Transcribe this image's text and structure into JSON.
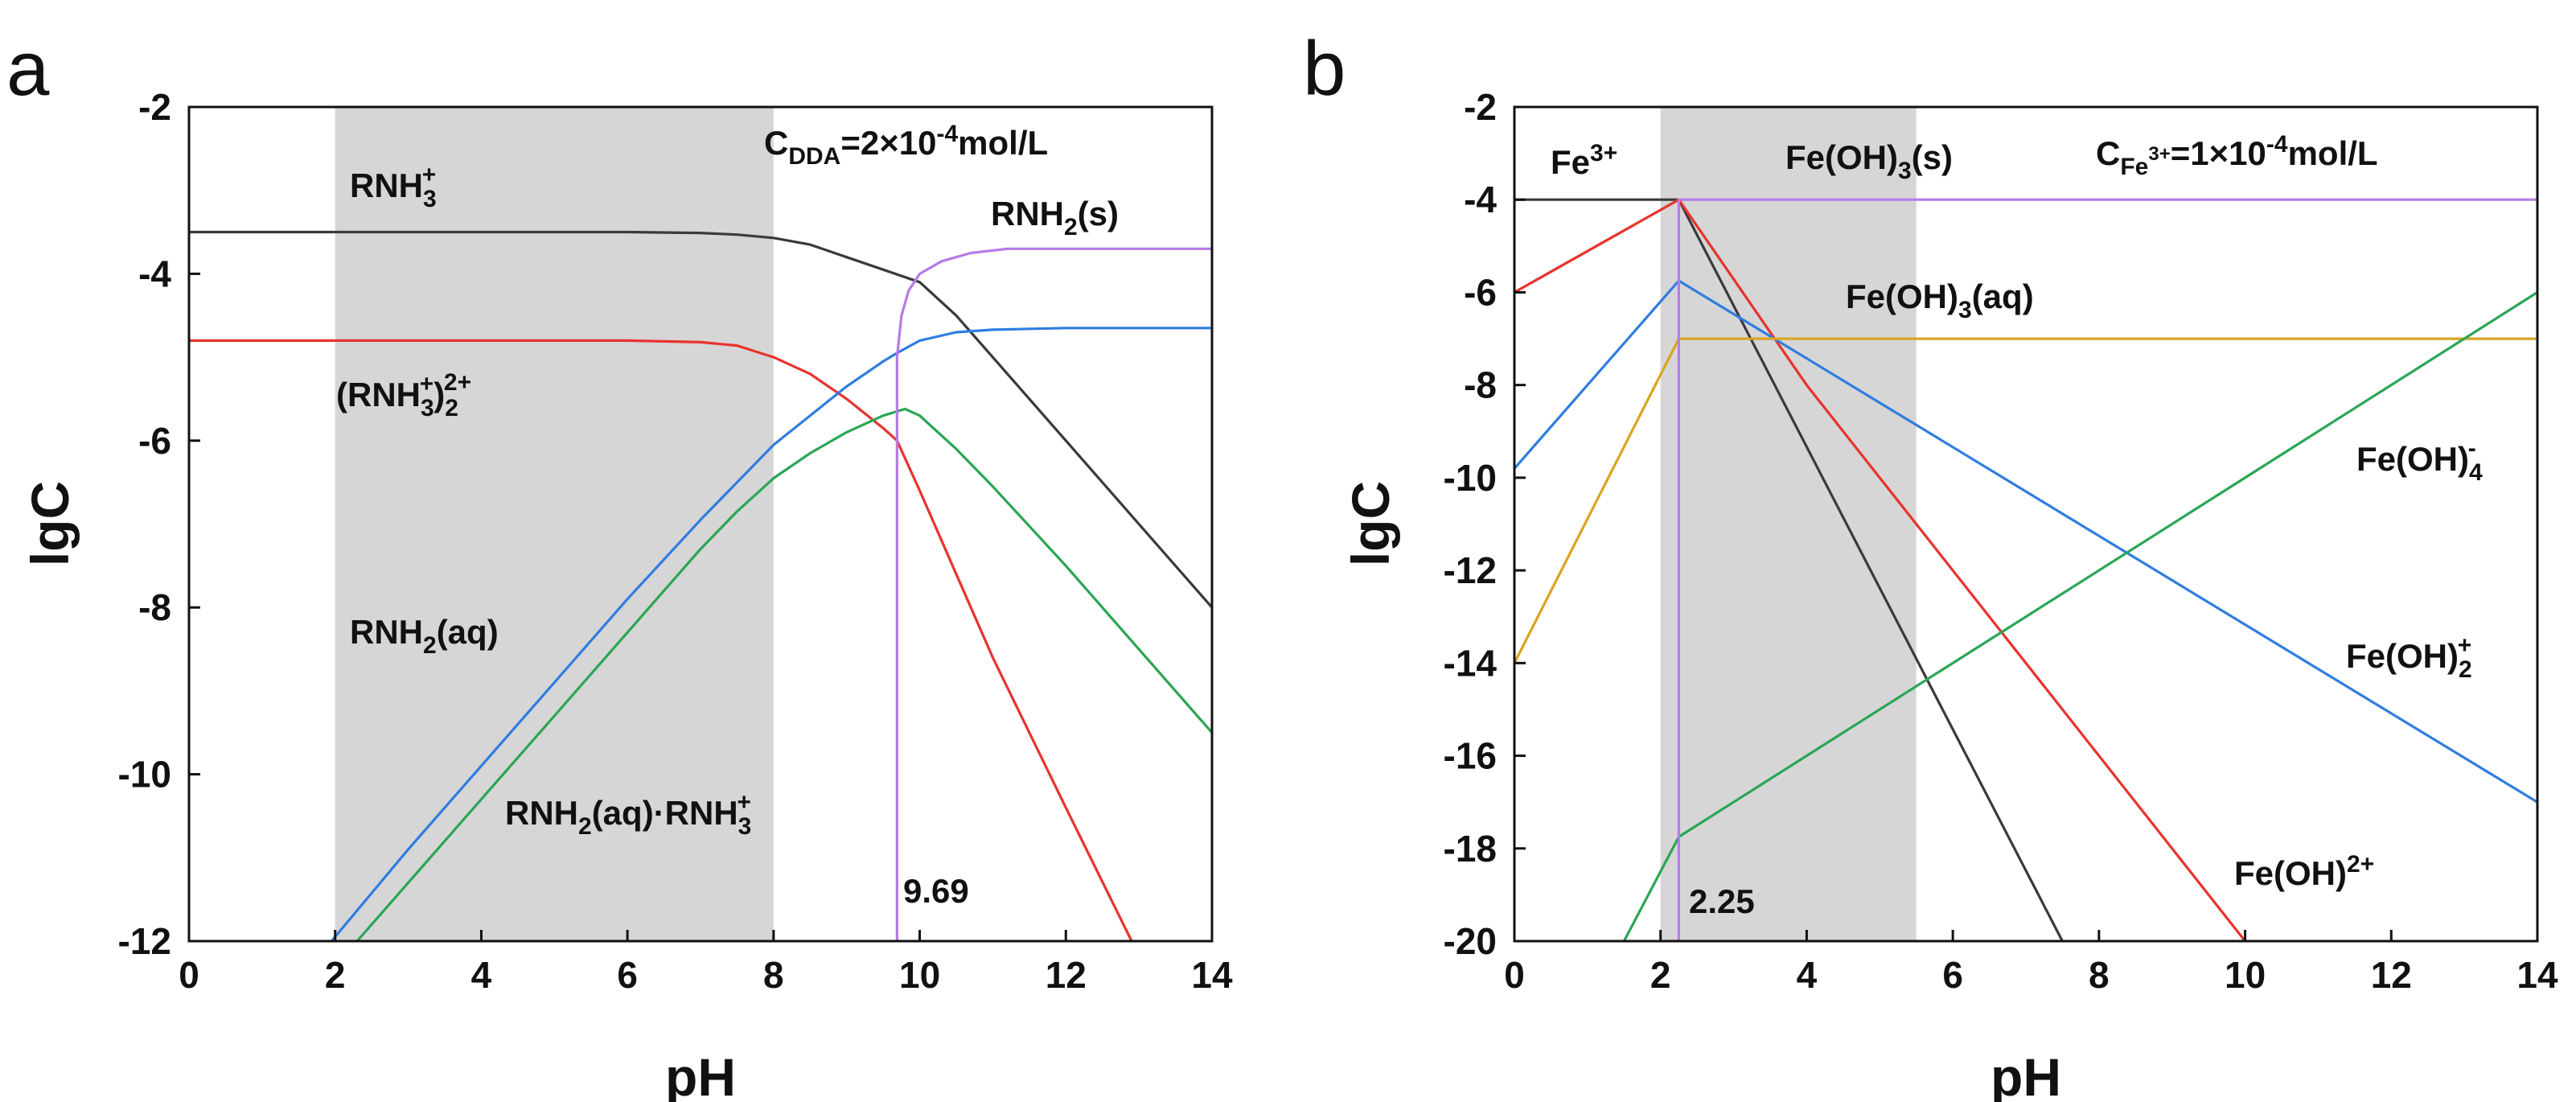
{
  "chart_data": [
    {
      "type": "line",
      "panel_label": "a",
      "xlabel": "pH",
      "ylabel": "lgC",
      "xlim": [
        0,
        14
      ],
      "ylim": [
        -12,
        -2
      ],
      "xticks": [
        0,
        2,
        4,
        6,
        8,
        10,
        12,
        14
      ],
      "yticks": [
        -2,
        -4,
        -6,
        -8,
        -10,
        -12
      ],
      "shaded_region": {
        "x_from": 2,
        "x_to": 8,
        "color": "#d6d6d6"
      },
      "vertical_marker": {
        "x": 9.69,
        "label": "9.69",
        "color": "#b57be6"
      },
      "annotations": {
        "conc_main": "C",
        "conc_sub": "DDA",
        "conc_eq": "=2×10",
        "conc_exp": "-4",
        "conc_unit": "mol/L",
        "rnh3_main": "RNH",
        "rnh3_sub": "3",
        "rnh3_sup": "+",
        "dimer_main": "(RNH",
        "dimer_sub": "3",
        "dimer_sup": "+",
        "dimer_close": ")",
        "dimer_sub2": "2",
        "dimer_sup2": "2+",
        "rnh2s_main": "RNH",
        "rnh2s_sub": "2",
        "rnh2s_tail": "(s)",
        "rnh2aq_main": "RNH",
        "rnh2aq_sub": "2",
        "rnh2aq_tail": "(aq)",
        "complex_main": "RNH",
        "complex_sub": "2",
        "complex_mid": "(aq)·RNH",
        "complex_sub2": "3",
        "complex_sup2": "+"
      },
      "series": [
        {
          "name": "RNH3+",
          "color": "#3a3a3a",
          "x": [
            0,
            2,
            4,
            6,
            7,
            7.5,
            8,
            8.5,
            9,
            9.5,
            10,
            10.5,
            11,
            12,
            13,
            14
          ],
          "values": [
            -3.5,
            -3.5,
            -3.5,
            -3.5,
            -3.51,
            -3.53,
            -3.57,
            -3.65,
            -3.8,
            -3.95,
            -4.1,
            -4.5,
            -5.0,
            -6.0,
            -7.0,
            -8.0
          ]
        },
        {
          "name": "(RNH3+)2 2+",
          "color": "#e8332e",
          "x": [
            0,
            2,
            4,
            6,
            7,
            7.5,
            8,
            8.5,
            9,
            9.5,
            9.69,
            10,
            10.5,
            11,
            12,
            12.9
          ],
          "values": [
            -4.8,
            -4.8,
            -4.8,
            -4.8,
            -4.82,
            -4.86,
            -5.0,
            -5.2,
            -5.5,
            -5.85,
            -6.0,
            -6.6,
            -7.6,
            -8.6,
            -10.4,
            -12.0
          ]
        },
        {
          "name": "RNH2(aq)",
          "color": "#2f7de0",
          "x": [
            1.95,
            3,
            4,
            5,
            6,
            7,
            7.5,
            8,
            8.5,
            9,
            9.5,
            9.69,
            10,
            10.5,
            11,
            12,
            14
          ],
          "values": [
            -12.0,
            -10.9,
            -9.9,
            -8.9,
            -7.9,
            -6.95,
            -6.5,
            -6.05,
            -5.7,
            -5.35,
            -5.05,
            -4.95,
            -4.8,
            -4.7,
            -4.67,
            -4.65,
            -4.65
          ]
        },
        {
          "name": "RNH2(aq)·RNH3+",
          "color": "#2aa655",
          "x": [
            2.3,
            3,
            4,
            5,
            6,
            7,
            7.5,
            8,
            8.5,
            9,
            9.5,
            9.8,
            10,
            10.5,
            11,
            12,
            13,
            14
          ],
          "values": [
            -12.0,
            -11.3,
            -10.3,
            -9.3,
            -8.3,
            -7.3,
            -6.85,
            -6.45,
            -6.15,
            -5.9,
            -5.7,
            -5.62,
            -5.7,
            -6.1,
            -6.55,
            -7.5,
            -8.5,
            -9.5
          ]
        },
        {
          "name": "RNH2(s)",
          "color": "#b57be6",
          "x": [
            9.69,
            9.69,
            9.75,
            9.85,
            10,
            10.3,
            10.7,
            11.2,
            12,
            13,
            14
          ],
          "values": [
            -12.0,
            -5.0,
            -4.5,
            -4.2,
            -4.0,
            -3.85,
            -3.75,
            -3.7,
            -3.7,
            -3.7,
            -3.7
          ]
        }
      ]
    },
    {
      "type": "line",
      "panel_label": "b",
      "xlabel": "pH",
      "ylabel": "lgC",
      "xlim": [
        0,
        14
      ],
      "ylim": [
        -20,
        -2
      ],
      "xticks": [
        0,
        2,
        4,
        6,
        8,
        10,
        12,
        14
      ],
      "yticks": [
        -2,
        -4,
        -6,
        -8,
        -10,
        -12,
        -14,
        -16,
        -18,
        -20
      ],
      "shaded_region": {
        "x_from": 2,
        "x_to": 5.5,
        "color": "#d6d6d6"
      },
      "vertical_marker": {
        "x": 2.25,
        "label": "2.25",
        "color": "#b57be6"
      },
      "annotations": {
        "fe3_main": "Fe",
        "fe3_sup": "3+",
        "feoh3s_main": "Fe(OH)",
        "feoh3s_sub": "3",
        "feoh3s_tail": "(s)",
        "conc_main": "C",
        "conc_sub": "Fe",
        "conc_subsup": "3+",
        "conc_eq": "=1×10",
        "conc_exp": "-4",
        "conc_unit": "mol/L",
        "feoh3aq_main": "Fe(OH)",
        "feoh3aq_sub": "3",
        "feoh3aq_tail": "(aq)",
        "feoh4_main": "Fe(OH)",
        "feoh4_sub": "4",
        "feoh4_sup": "-",
        "feoh2_main": "Fe(OH)",
        "feoh2_sub": "2",
        "feoh2_sup": "+",
        "feoh_main": "Fe(OH)",
        "feoh_sup": "2+"
      },
      "series": [
        {
          "name": "Fe3+",
          "color": "#3a3a3a",
          "x": [
            0,
            2.25,
            7.5
          ],
          "values": [
            -4.0,
            -4.0,
            -20.0
          ]
        },
        {
          "name": "Fe(OH)2+",
          "color": "#e8332e",
          "x": [
            0,
            2.25,
            4,
            10
          ],
          "values": [
            -6.0,
            -4.0,
            -8.0,
            -20.0
          ]
        },
        {
          "name": "Fe(OH)2 +",
          "color": "#2f7de0",
          "x": [
            0,
            2.25,
            14
          ],
          "values": [
            -9.8,
            -5.75,
            -17.0
          ]
        },
        {
          "name": "Fe(OH)3(aq)",
          "color": "#d9a521",
          "x": [
            0,
            2.25,
            14
          ],
          "values": [
            -14.0,
            -7.0,
            -7.0
          ]
        },
        {
          "name": "Fe(OH)4-",
          "color": "#2aa655",
          "x": [
            1.5,
            2.25,
            14
          ],
          "values": [
            -20.0,
            -17.75,
            -6.0
          ]
        },
        {
          "name": "Fe(OH)3(s)",
          "color": "#b57be6",
          "x": [
            2.25,
            2.25,
            14
          ],
          "values": [
            -20.0,
            -4.0,
            -4.0
          ]
        }
      ]
    }
  ]
}
